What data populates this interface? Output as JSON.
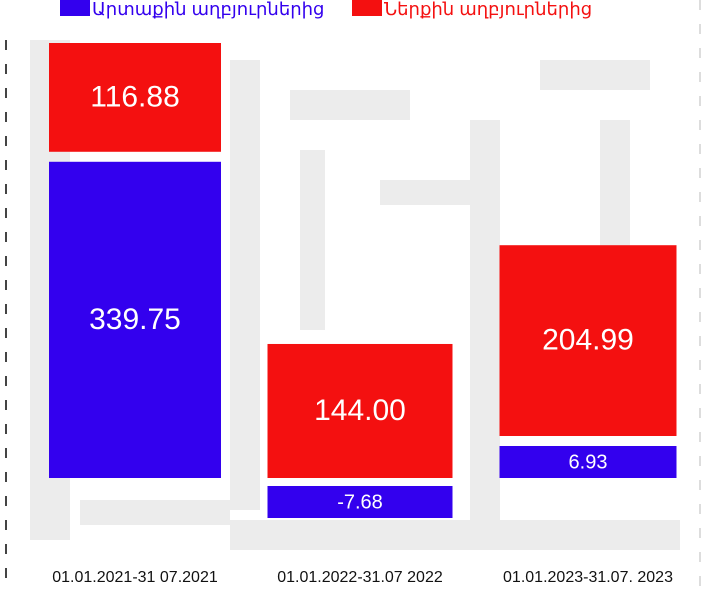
{
  "chart_data": {
    "type": "stacked-bar",
    "categories": [
      "01.01.2021-31 07.2021",
      "01.01.2022-31.07 2022",
      "01.01.2023-31.07. 2023"
    ],
    "series": [
      {
        "name": "Արտաքին աղբյուրներից",
        "color": "#3300ee",
        "values": [
          339.75,
          -7.68,
          6.93
        ]
      },
      {
        "name": "Ներքին աղբյուրներից",
        "color": "#f41010",
        "values": [
          116.88,
          144.0,
          204.99
        ],
        "value_labels": [
          "116.88",
          "144.00",
          "204.99"
        ]
      }
    ]
  }
}
